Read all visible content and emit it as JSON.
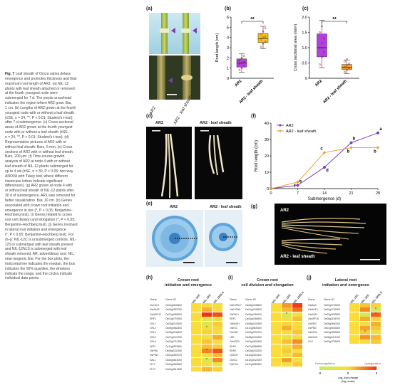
{
  "figure": {
    "caption_title": "Fig. 7",
    "caption_lines": [
      "Leaf sheath of Oryza sativa delays",
      "emergence and promotes thickness and final",
      "maximum root length of AR2. (a) NIL-12",
      "plants with leaf sheath attached or removed",
      "at the fourth youngest node were",
      "submerged for 7 d. The purple arrowhead",
      "indicates the region where AR2 grow. Bar,",
      "1 cm. (b) Lengths of AR2 grown at the fourth",
      "youngest node with or without a leaf sheath",
      "(±SE, n = 24, **, P < 0.01; Student's t-test)",
      "after 7-d submergence. (c) Cross-sectional",
      "areas of AR2 grown at the fourth youngest",
      "node with or without a leaf sheath (±SE,",
      "n = 24, **, P < 0.01; Student's t-test). (d)",
      "Representative pictures of AR2 with or",
      "without leaf sheath. Bars, 5 mm. (e) Cross",
      "sections of AR2 with or without leaf sheath.",
      "Bars, 200 μm. (f) Time-course growth",
      "analysis of AR2 at node 4 with or without",
      "leaf sheath of NIL-12 plants submerged for",
      "up to 4 wk (±SE, n = 30, P < 0.05; two-way",
      "ANOVA with Tukey test, where different",
      "lowercase letters indicate significant",
      "differences). (g) AR2 grown at node 4 with",
      "or without leaf sheath of NIL-12 plants after",
      "30 d of submergence. AR1 was removed for",
      "better visualization. Bar, 10 cm. (h) Genes",
      "associated with crown root initiation and",
      "emergence in rice (*, P < 0.05; Benjamini–",
      "Hochberg test). (i) Genes related to crown",
      "root cell division and elongation (*, P < 0.05;",
      "Benjamini–Hochberg test). (j) Genes involved",
      "in lateral root initiation and emergence",
      "(*, P < 0.05; Benjamini–Hochberg test). For",
      "(h–j): NIL-12C is unsubmerged controls, NIL-",
      "12S is submerged with leaf sheath present",
      "and NIL-12NLS is submerged with leaf",
      "sheath removed. AR, adventitious root; NIL,",
      "near-isogenic line. For the box plots, the",
      "horizontal line indicates the median, the box",
      "indicates the 50% quartiles, the whiskers",
      "indicate the range, and the circles indicate",
      "individual data points."
    ]
  },
  "panel_labels": {
    "a": "(a)",
    "b": "(b)",
    "c": "(c)",
    "d": "(d)",
    "e": "(e)",
    "f": "(f)",
    "g": "(g)",
    "h": "(h)",
    "i": "(i)",
    "j": "(j)"
  },
  "panel_a": {
    "labels": [
      "AR2",
      "AR2 - leaf sheath"
    ]
  },
  "panel_d": {
    "labels": [
      "AR2",
      "AR2 - leaf sheath"
    ]
  },
  "panel_e": {
    "labels": [
      "AR2",
      "AR2 - leaf sheath"
    ]
  },
  "panel_g": {
    "labels": [
      "AR2",
      "AR2 - leaf sheath"
    ]
  },
  "chart_data": [
    {
      "panel": "b",
      "type": "box",
      "ylabel": "Root length (cm)",
      "ylim": [
        0,
        6
      ],
      "yticks": [
        0,
        1,
        2,
        3,
        4,
        5,
        6
      ],
      "categories": [
        "AR2",
        "AR2 - leaf sheath"
      ],
      "colors": [
        "#b140e0",
        "#f5c518"
      ],
      "boxes": [
        {
          "min": 0.6,
          "q1": 1.1,
          "median": 1.5,
          "q3": 1.9,
          "max": 2.4
        },
        {
          "min": 2.9,
          "q1": 3.5,
          "median": 3.9,
          "q3": 4.4,
          "max": 5.1
        }
      ],
      "points": [
        [
          0.8,
          1.0,
          1.2,
          1.4,
          1.5,
          1.6,
          1.8,
          2.0,
          2.2
        ],
        [
          3.1,
          3.4,
          3.6,
          3.8,
          4.0,
          4.1,
          4.3,
          4.6,
          4.9
        ]
      ],
      "significance": "**"
    },
    {
      "panel": "c",
      "type": "box",
      "ylabel": "Cross sectional area (mm²)",
      "ylim": [
        0,
        2.0
      ],
      "yticks": [
        0,
        0.5,
        1.0,
        1.5,
        2.0
      ],
      "yticklabels": [
        "0",
        "0.5",
        "1.0",
        "1.5",
        "2.0"
      ],
      "categories": [
        "AR2",
        "AR2 - leaf sheath"
      ],
      "colors": [
        "#b140e0",
        "#f5a623"
      ],
      "boxes": [
        {
          "min": 0.35,
          "q1": 0.7,
          "median": 1.0,
          "q3": 1.45,
          "max": 1.9
        },
        {
          "min": 0.15,
          "q1": 0.28,
          "median": 0.36,
          "q3": 0.45,
          "max": 0.6
        }
      ],
      "points": [
        [
          0.45,
          0.7,
          0.85,
          1.0,
          1.15,
          1.3,
          1.5,
          1.7
        ],
        [
          0.2,
          0.28,
          0.33,
          0.37,
          0.42,
          0.48,
          0.55,
          0.62
        ]
      ],
      "significance": "**"
    },
    {
      "panel": "f",
      "type": "line",
      "xlabel": "Submergence (d)",
      "ylabel": "Root length (cm)",
      "xlim": [
        0,
        28
      ],
      "ylim": [
        0,
        40
      ],
      "xticks": [
        0,
        7,
        14,
        21,
        28
      ],
      "yticks": [
        0,
        10,
        20,
        30,
        40
      ],
      "legend": "top-left",
      "series": [
        {
          "name": "AR2",
          "color": "#7b3fc4",
          "x": [
            0,
            7,
            14,
            21,
            28
          ],
          "y": [
            0,
            2,
            13,
            28,
            34
          ],
          "letters": [
            "",
            "e",
            "d",
            "b",
            "a"
          ]
        },
        {
          "name": "AR2 - leaf sheath",
          "color": "#f0a030",
          "x": [
            0,
            7,
            14,
            21,
            28
          ],
          "y": [
            0,
            4,
            22,
            25,
            25
          ],
          "letters": [
            "",
            "f",
            "c",
            "b",
            "b"
          ]
        }
      ]
    }
  ],
  "heatmap_h": {
    "title": "Crown root\ninitiation and emergence",
    "col_gene": "Gene",
    "col_id": "Gene ID",
    "conditions": [
      "NIL-12C",
      "NIL-12S",
      "NIL-12NLS"
    ],
    "rows": [
      {
        "gene": "OsYUC1",
        "id": "Os01g0645400",
        "v": [
          0,
          -0.2,
          -0.3
        ],
        "s": [
          "",
          "",
          ""
        ]
      },
      {
        "gene": "OsIAA23",
        "id": "Os06g0597000",
        "v": [
          0,
          0.8,
          -0.2
        ],
        "s": [
          "",
          "",
          ""
        ]
      },
      {
        "gene": "OsWOX11",
        "id": "Os07g0684900",
        "v": [
          0,
          3,
          2.5
        ],
        "s": [
          "",
          "",
          ""
        ]
      },
      {
        "gene": "ERF3",
        "id": "Os01g0797600",
        "v": [
          0,
          -1.5,
          -0.9
        ],
        "s": [
          "",
          "",
          ""
        ]
      },
      {
        "gene": "CRL1",
        "id": "Os03g0149100",
        "v": [
          0,
          -1.2,
          0.3
        ],
        "s": [
          "",
          "",
          ""
        ]
      },
      {
        "gene": "CRL2",
        "id": "Os05g0582400",
        "v": [
          0,
          -0.8,
          0.1
        ],
        "s": [
          "",
          "*",
          ""
        ]
      },
      {
        "gene": "CRL4",
        "id": "Os03g0106400",
        "v": [
          0,
          0.2,
          -0.2
        ],
        "s": [
          "",
          "",
          ""
        ]
      },
      {
        "gene": "CRL5",
        "id": "Os07g0124700",
        "v": [
          0,
          -0.6,
          0.9
        ],
        "s": [
          "",
          "",
          ""
        ]
      },
      {
        "gene": "CRL6",
        "id": "Os02g0710200",
        "v": [
          0,
          0.4,
          -0.4
        ],
        "s": [
          "",
          "",
          ""
        ]
      },
      {
        "gene": "ARF1",
        "id": "Os11g0523800",
        "v": [
          0,
          0.5,
          0.3
        ],
        "s": [
          "",
          "",
          ""
        ]
      },
      {
        "gene": "OsPIN1",
        "id": "Os06g0232300",
        "v": [
          0,
          1.6,
          2.4
        ],
        "s": [
          "",
          "*",
          ""
        ]
      },
      {
        "gene": "OsPIN9",
        "id": "Os01g0802700",
        "v": [
          0,
          -0.3,
          0.6
        ],
        "s": [
          "",
          "",
          ""
        ]
      },
      {
        "gene": "NAL1",
        "id": "Os04g0615000",
        "v": [
          0,
          -1.6,
          1.5
        ],
        "s": [
          "",
          "*",
          ""
        ]
      },
      {
        "gene": "PLT1",
        "id": "Os04g0653600",
        "v": [
          0,
          -0.4,
          -0.7
        ],
        "s": [
          "",
          "",
          ""
        ]
      },
      {
        "gene": "PLT3",
        "id": "Os02g0614300",
        "v": [
          0,
          0.7,
          0.2
        ],
        "s": [
          "",
          "",
          ""
        ]
      }
    ]
  },
  "heatmap_i": {
    "title": "Crown root\ncell division and elongation",
    "col_gene": "Gene",
    "col_id": "Gene ID",
    "conditions": [
      "NIL-12C",
      "NIL-12S",
      "NIL-12NLS"
    ],
    "rows": [
      {
        "gene": "OsEXPA17",
        "id": "Os06g0108600",
        "v": [
          0,
          1.2,
          2.8
        ],
        "s": [
          "",
          "",
          ""
        ]
      },
      {
        "gene": "OsEXPA8",
        "id": "Os01g0248900",
        "v": [
          0,
          0.6,
          1.9
        ],
        "s": [
          "",
          "",
          ""
        ]
      },
      {
        "gene": "OsRHL1",
        "id": "Os06g0184000",
        "v": [
          0,
          -1.8,
          -0.4
        ],
        "s": [
          "",
          "*",
          ""
        ]
      },
      {
        "gene": "ERF1",
        "id": "Os04g0456900",
        "v": [
          0,
          -0.7,
          0.5
        ],
        "s": [
          "",
          "",
          ""
        ]
      },
      {
        "gene": "OsBADH",
        "id": "Os08g0424500",
        "v": [
          0,
          0.2,
          -0.3
        ],
        "s": [
          "",
          "",
          ""
        ]
      },
      {
        "gene": "OsEX2",
        "id": "Os11g0505400",
        "v": [
          0,
          0.8,
          0.1
        ],
        "s": [
          "",
          "",
          ""
        ]
      },
      {
        "gene": "OsCAN",
        "id": "Os02g0194700",
        "v": [
          0,
          -0.2,
          0.4
        ],
        "s": [
          "",
          "",
          ""
        ]
      },
      {
        "gene": "LRE",
        "id": "Os08g0102300",
        "v": [
          0,
          -1.0,
          -0.5
        ],
        "s": [
          "",
          "",
          ""
        ]
      },
      {
        "gene": "OsNCED",
        "id": "Os04g0625400",
        "v": [
          0,
          0.5,
          1.4
        ],
        "s": [
          "",
          "",
          ""
        ]
      },
      {
        "gene": "SHR1",
        "id": "Os07g0586900",
        "v": [
          0,
          -0.5,
          0.8
        ],
        "s": [
          "",
          "",
          ""
        ]
      },
      {
        "gene": "SHR2",
        "id": "Os03g0433200",
        "v": [
          0,
          0.3,
          -0.2
        ],
        "s": [
          "",
          "",
          ""
        ]
      },
      {
        "gene": "OsSCR",
        "id": "Os11g0124300",
        "v": [
          0,
          -0.9,
          0.6
        ],
        "s": [
          "",
          "",
          ""
        ]
      },
      {
        "gene": "OsSCL",
        "id": "Os12g0122000",
        "v": [
          0,
          1.1,
          -0.4
        ],
        "s": [
          "",
          "",
          ""
        ]
      },
      {
        "gene": "OsEXL1",
        "id": "Os11g0552800",
        "v": [
          0,
          -0.3,
          0.3
        ],
        "s": [
          "",
          "",
          ""
        ]
      }
    ]
  },
  "heatmap_j": {
    "title": "Lateral root\ninitiation and emergence",
    "col_gene": "Gene",
    "col_id": "Gene ID",
    "conditions": [
      "NIL-12C",
      "NIL-12S",
      "NIL-12NLS"
    ],
    "rows": [
      {
        "gene": "OsIAA3",
        "id": "Os02g0723400",
        "v": [
          0,
          0.4,
          0.2
        ],
        "s": [
          "",
          "",
          ""
        ]
      },
      {
        "gene": "OsIAA13",
        "id": "Os03g0742900",
        "v": [
          0,
          1.5,
          -2.4
        ],
        "s": [
          "",
          "",
          "*"
        ]
      },
      {
        "gene": "OsIAA11",
        "id": "Os03g0633500",
        "v": [
          0,
          -1.8,
          2.2
        ],
        "s": [
          "",
          "",
          "*"
        ]
      },
      {
        "gene": "OsARF16",
        "id": "Os06g0196700",
        "v": [
          0,
          0.9,
          0.1
        ],
        "s": [
          "",
          "",
          ""
        ]
      },
      {
        "gene": "OsPIN2",
        "id": "Os06g0660200",
        "v": [
          0,
          -0.6,
          0.8
        ],
        "s": [
          "",
          "",
          ""
        ]
      },
      {
        "gene": "OsPIN3",
        "id": "Os01g0643300",
        "v": [
          0,
          1.0,
          0.4
        ],
        "s": [
          "",
          "",
          ""
        ]
      },
      {
        "gene": "OsDOX1",
        "id": "Os02g0562800",
        "v": [
          0,
          0.3,
          -0.9
        ],
        "s": [
          "",
          "*",
          ""
        ]
      },
      {
        "gene": "OsDOX2",
        "id": "Os08g0412100",
        "v": [
          0,
          1.3,
          0.6
        ],
        "s": [
          "",
          "",
          ""
        ]
      },
      {
        "gene": "GLU",
        "id": "Os03g0745000",
        "v": [
          0,
          -0.4,
          0.3
        ],
        "s": [
          "",
          "",
          ""
        ]
      }
    ],
    "legend": {
      "low_label": "Downregulation",
      "high_label": "Upregulation",
      "ticks": [
        "-3",
        "0",
        "3"
      ],
      "title": "Log₂ fold change\n(log₂ scale)"
    }
  }
}
